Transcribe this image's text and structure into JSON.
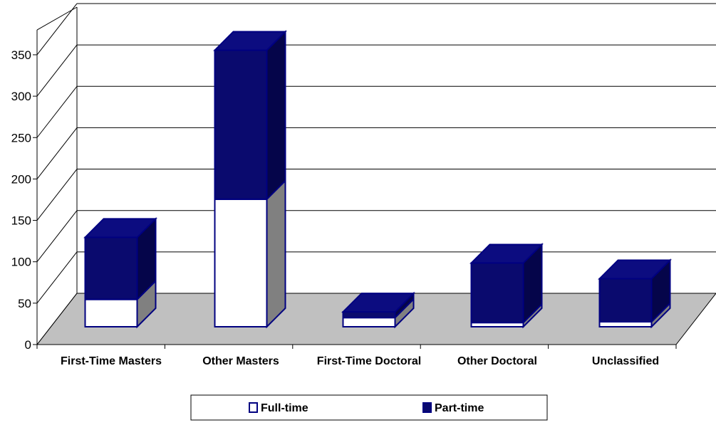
{
  "chart_data": {
    "type": "bar",
    "stacked": true,
    "three_d": true,
    "title": "",
    "xlabel": "",
    "ylabel": "",
    "ylim": [
      0,
      350
    ],
    "yticks": [
      0,
      50,
      100,
      150,
      200,
      250,
      300,
      350
    ],
    "grid": true,
    "legend_position": "bottom",
    "categories": [
      "First-Time Masters",
      "Other Masters",
      "First-Time Doctoral",
      "Other Doctoral",
      "Unclassified"
    ],
    "series": [
      {
        "name": "Full-time",
        "values": [
          33,
          154,
          11,
          5,
          6
        ]
      },
      {
        "name": "Part-time",
        "values": [
          75,
          180,
          7,
          72,
          52
        ]
      }
    ]
  },
  "colors": {
    "full_time_fill": "#ffffff",
    "full_time_side": "#808080",
    "full_time_top": "#e6e6e6",
    "part_time_fill": "#0a0a6e",
    "part_time_side": "#05054a",
    "part_time_top": "#0c0c80",
    "outline": "#000080",
    "floor": "#c0c0c0",
    "grid": "#000000"
  }
}
